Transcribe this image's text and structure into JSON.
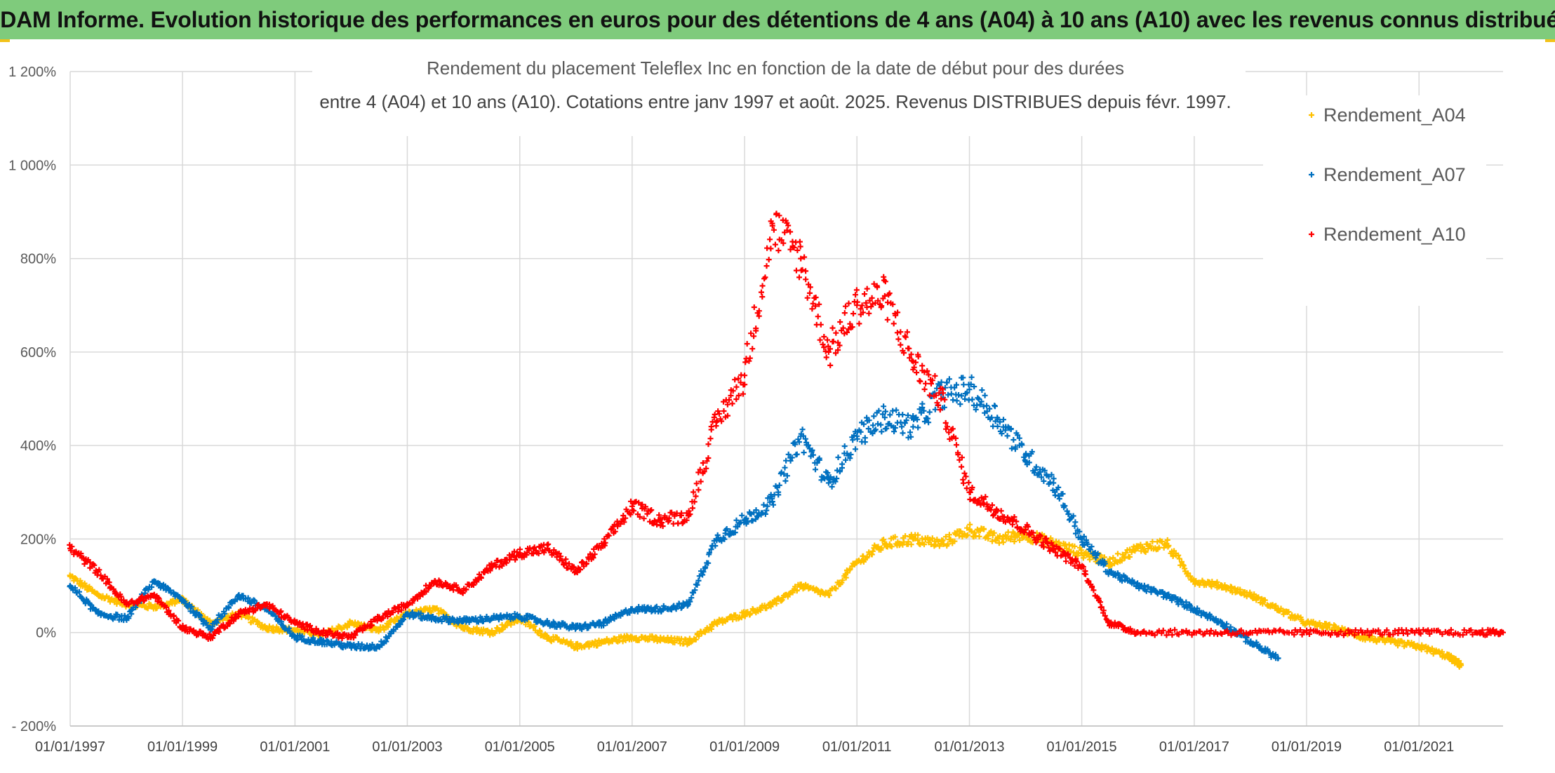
{
  "banner": {
    "title": "ADAM Informe. Evolution historique des performances en euros pour des détentions de 4 ans (A04) à 10 ans (A10) avec les revenus connus distribués"
  },
  "chart_data": {
    "type": "scatter",
    "title_line1": "Rendement du placement Teleflex Inc en fonction de la date de début pour des durées",
    "title_line2": "entre 4 (A04) et 10 ans (A10). Cotations entre janv 1997 et août. 2025. Revenus DISTRIBUES depuis févr. 1997.",
    "xlabel": "",
    "ylabel": "",
    "x_start": "1997-01-01",
    "x_end": "2022-07-01",
    "ylim": [
      -200,
      1200
    ],
    "y_ticks": [
      -200,
      0,
      200,
      400,
      600,
      800,
      1000,
      1200
    ],
    "y_tick_labels": [
      "- 200%",
      "0%",
      "200%",
      "400%",
      "600%",
      "800%",
      "1 000%",
      "1 200%"
    ],
    "x_ticks": [
      "1997-01-01",
      "1999-01-01",
      "2001-01-01",
      "2003-01-01",
      "2005-01-01",
      "2007-01-01",
      "2009-01-01",
      "2011-01-01",
      "2013-01-01",
      "2015-01-01",
      "2017-01-01",
      "2019-01-01",
      "2021-01-01"
    ],
    "x_tick_labels": [
      "01/01/1997",
      "01/01/1999",
      "01/01/2001",
      "01/01/2003",
      "01/01/2005",
      "01/01/2007",
      "01/01/2009",
      "01/01/2011",
      "01/01/2013",
      "01/01/2015",
      "01/01/2017",
      "01/01/2019",
      "01/01/2021"
    ],
    "grid": true,
    "marker": "+",
    "legend_position": "right",
    "series": [
      {
        "name": "Rendement_A04",
        "color": "#ffc000",
        "x": [
          "1997-01-01",
          "1997-07-01",
          "1998-01-01",
          "1998-07-01",
          "1999-01-01",
          "1999-07-01",
          "2000-01-01",
          "2000-07-01",
          "2001-01-01",
          "2001-07-01",
          "2002-01-01",
          "2002-07-01",
          "2003-01-01",
          "2003-07-01",
          "2004-01-01",
          "2004-07-01",
          "2005-01-01",
          "2005-07-01",
          "2006-01-01",
          "2006-07-01",
          "2007-01-01",
          "2007-07-01",
          "2008-01-01",
          "2008-07-01",
          "2009-01-01",
          "2009-07-01",
          "2010-01-01",
          "2010-07-01",
          "2011-01-01",
          "2011-07-01",
          "2012-01-01",
          "2012-07-01",
          "2013-01-01",
          "2013-07-01",
          "2014-01-01",
          "2014-07-01",
          "2015-01-01",
          "2015-07-01",
          "2016-01-01",
          "2016-07-01",
          "2017-01-01",
          "2017-07-01",
          "2018-01-01",
          "2018-07-01",
          "2019-01-01",
          "2019-07-01",
          "2020-01-01",
          "2020-07-01",
          "2021-01-01",
          "2021-07-01",
          "2021-10-01"
        ],
        "y": [
          120,
          80,
          60,
          55,
          70,
          20,
          40,
          10,
          5,
          -5,
          20,
          5,
          40,
          50,
          10,
          0,
          30,
          -10,
          -30,
          -20,
          -10,
          -15,
          -20,
          20,
          40,
          60,
          100,
          80,
          150,
          190,
          200,
          190,
          220,
          200,
          210,
          190,
          170,
          150,
          180,
          190,
          110,
          100,
          80,
          50,
          20,
          10,
          -10,
          -20,
          -30,
          -50,
          -70
        ]
      },
      {
        "name": "Rendement_A07",
        "color": "#0070c0",
        "x": [
          "1997-01-01",
          "1997-07-01",
          "1998-01-01",
          "1998-07-01",
          "1999-01-01",
          "1999-07-01",
          "2000-01-01",
          "2000-07-01",
          "2001-01-01",
          "2001-07-01",
          "2002-01-01",
          "2002-07-01",
          "2003-01-01",
          "2003-07-01",
          "2004-01-01",
          "2004-07-01",
          "2005-01-01",
          "2005-07-01",
          "2006-01-01",
          "2006-07-01",
          "2007-01-01",
          "2007-07-01",
          "2008-01-01",
          "2008-07-01",
          "2009-01-01",
          "2009-07-01",
          "2010-01-01",
          "2010-07-01",
          "2011-01-01",
          "2011-07-01",
          "2012-01-01",
          "2012-07-01",
          "2013-01-01",
          "2013-07-01",
          "2014-01-01",
          "2014-07-01",
          "2015-01-01",
          "2015-07-01",
          "2016-01-01",
          "2016-07-01",
          "2017-01-01",
          "2017-07-01",
          "2018-01-01",
          "2018-07-01"
        ],
        "y": [
          100,
          40,
          30,
          110,
          70,
          10,
          80,
          50,
          -10,
          -20,
          -30,
          -30,
          40,
          30,
          25,
          30,
          35,
          20,
          10,
          20,
          50,
          50,
          60,
          200,
          240,
          280,
          420,
          320,
          420,
          460,
          440,
          510,
          520,
          460,
          380,
          320,
          200,
          130,
          100,
          80,
          50,
          20,
          -20,
          -55
        ]
      },
      {
        "name": "Rendement_A10",
        "color": "#ff0000",
        "x": [
          "1997-01-01",
          "1997-07-01",
          "1998-01-01",
          "1998-07-01",
          "1999-01-01",
          "1999-07-01",
          "2000-01-01",
          "2000-07-01",
          "2001-01-01",
          "2001-07-01",
          "2002-01-01",
          "2002-07-01",
          "2003-01-01",
          "2003-07-01",
          "2004-01-01",
          "2004-07-01",
          "2005-01-01",
          "2005-07-01",
          "2006-01-01",
          "2006-07-01",
          "2007-01-01",
          "2007-07-01",
          "2008-01-01",
          "2008-07-01",
          "2009-01-01",
          "2009-07-01",
          "2010-01-01",
          "2010-07-01",
          "2011-01-01",
          "2011-07-01",
          "2012-01-01",
          "2012-07-01",
          "2013-01-01",
          "2013-07-01",
          "2014-01-01",
          "2014-07-01",
          "2015-01-01",
          "2015-07-01",
          "2016-01-01",
          "2017-01-01",
          "2018-01-01",
          "2019-01-01",
          "2020-01-01",
          "2021-01-01",
          "2022-01-01",
          "2022-07-01"
        ],
        "y": [
          180,
          130,
          60,
          80,
          10,
          -10,
          40,
          60,
          20,
          0,
          -10,
          30,
          60,
          110,
          90,
          140,
          170,
          180,
          130,
          190,
          270,
          240,
          250,
          450,
          550,
          870,
          800,
          600,
          700,
          720,
          580,
          500,
          300,
          260,
          220,
          180,
          140,
          20,
          0,
          0,
          0,
          0,
          0,
          0,
          0,
          0
        ]
      }
    ]
  }
}
